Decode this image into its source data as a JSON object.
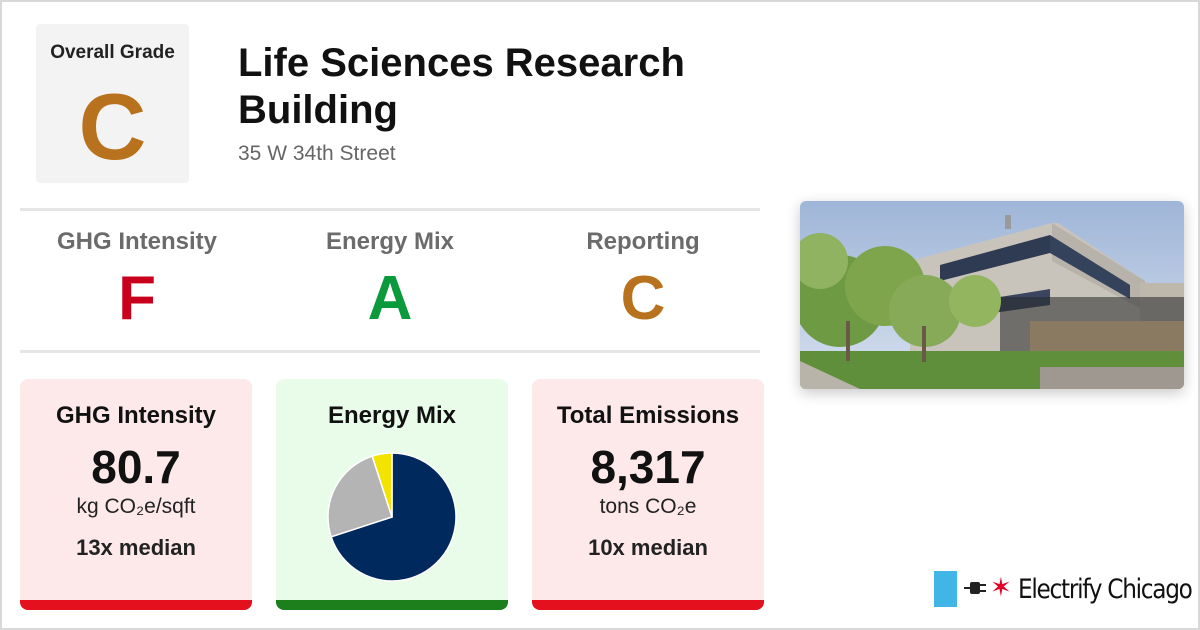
{
  "overall": {
    "label": "Overall Grade",
    "grade": "C",
    "color": "#b8711c"
  },
  "building": {
    "name": "Life Sciences Research Building",
    "address": "35 W 34th Street"
  },
  "grades": [
    {
      "label": "GHG Intensity",
      "value": "F",
      "color": "#c8001b"
    },
    {
      "label": "Energy Mix",
      "value": "A",
      "color": "#0a9a3c"
    },
    {
      "label": "Reporting",
      "value": "C",
      "color": "#b8711c"
    }
  ],
  "cards": {
    "ghg": {
      "title": "GHG Intensity",
      "value": "80.7",
      "unit": "kg CO₂e/sqft",
      "median": "13x median"
    },
    "mix": {
      "title": "Energy Mix"
    },
    "emissions": {
      "title": "Total Emissions",
      "value": "8,317",
      "unit": "tons CO₂e",
      "median": "10x median"
    }
  },
  "energy_mix_slices": [
    {
      "share": 0.7,
      "color": "#002a5e"
    },
    {
      "share": 0.25,
      "color": "#b4b4b4"
    },
    {
      "share": 0.05,
      "color": "#f2e300"
    }
  ],
  "brand": {
    "name": "Electrify Chicago",
    "icon": "chicago-star-icon",
    "plug_icon": "plug-icon"
  },
  "colors": {
    "bad_bg": "#fde8ea",
    "good_bg": "#e9fbe9",
    "bad_bar": "#e4101d",
    "good_bar": "#1c7f1c"
  }
}
